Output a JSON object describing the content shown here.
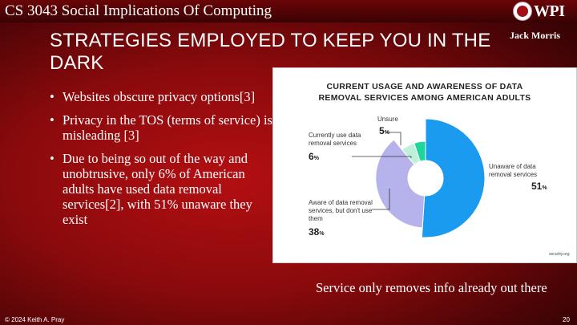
{
  "header": {
    "course": "CS 3043 Social Implications Of Computing",
    "logo_text": "WPI",
    "author": "Jack Morris"
  },
  "slide": {
    "title": "STRATEGIES EMPLOYED TO KEEP YOU IN THE DARK",
    "bullets": [
      "Websites obscure privacy options[3]",
      "Privacy in the TOS (terms of service) is misleading [3]",
      "Due to being so out of the way and unobtrusive, only 6% of American adults have used data removal services[2], with 51% unaware they exist"
    ],
    "note": "Service only removes info already out there"
  },
  "chart_data": {
    "type": "pie",
    "title": "CURRENT USAGE AND AWARENESS OF DATA REMOVAL SERVICES AMONG AMERICAN ADULTS",
    "slices": [
      {
        "label": "Unaware of data removal services",
        "value": 51,
        "display": "51",
        "color": "#1a9bf0"
      },
      {
        "label": "Aware of data removal services, but don't use them",
        "value": 38,
        "display": "38",
        "color": "#b6b3ec"
      },
      {
        "label": "Currently use data removal services",
        "value": 6,
        "display": "6",
        "color": "#bff0dc"
      },
      {
        "label": "Unsure",
        "value": 5,
        "display": "5",
        "color": "#1fd69a"
      }
    ],
    "brand": "security.org"
  },
  "footer": {
    "copyright": "© 2024 Keith A. Pray",
    "page": "20"
  }
}
